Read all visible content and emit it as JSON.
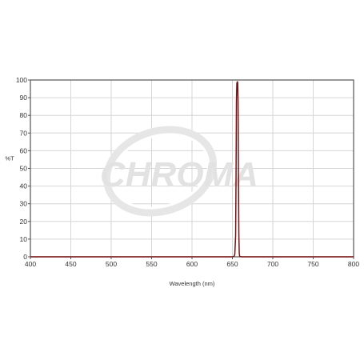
{
  "chart_data": {
    "type": "line",
    "title": "",
    "xlabel": "Wavelength (nm)",
    "ylabel": "%T",
    "xlim": [
      400,
      800
    ],
    "ylim": [
      0,
      100
    ],
    "x_ticks": [
      400,
      450,
      500,
      550,
      600,
      650,
      700,
      750,
      800
    ],
    "y_ticks": [
      0,
      10,
      20,
      30,
      40,
      50,
      60,
      70,
      80,
      90,
      100
    ],
    "grid": true,
    "watermark": "CHROMA",
    "series": [
      {
        "color": "#7a1010",
        "x": [
          400,
          600,
          650,
          652,
          653,
          654,
          654.5,
          655,
          655.5,
          656,
          656.3,
          656.6,
          657,
          657.5,
          658,
          658.5,
          659,
          660,
          662,
          700,
          800
        ],
        "y": [
          0,
          0,
          0,
          0.2,
          1.5,
          12,
          45,
          88,
          98,
          99,
          99,
          98,
          88,
          45,
          12,
          2,
          0.3,
          0.1,
          0,
          0,
          0
        ]
      }
    ]
  },
  "colors": {
    "plot_border": "#555555",
    "grid": "#d6d6d6",
    "watermark": "#e2e2e2"
  }
}
